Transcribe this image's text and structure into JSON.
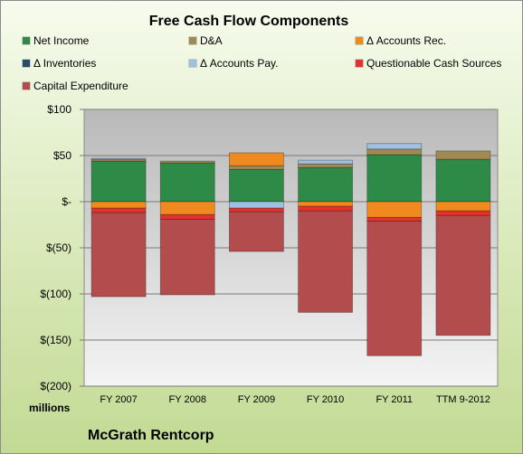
{
  "chart_data": {
    "type": "bar",
    "stacked": true,
    "title": "Free Cash Flow Components",
    "subtitle": "McGrath Rentcorp",
    "units_label": "millions",
    "categories": [
      "FY 2007",
      "FY 2008",
      "FY 2009",
      "FY 2010",
      "FY 2011",
      "TTM 9-2012"
    ],
    "y_ticks": [
      "$100",
      "$50",
      "$-",
      "$(50)",
      "$(100)",
      "$(150)",
      "$(200)"
    ],
    "ylim": [
      -200,
      100
    ],
    "grid": true,
    "legend_position": "top",
    "series": [
      {
        "name": "Net Income",
        "color": "#2e8b47",
        "values": [
          44,
          42,
          35,
          37,
          51,
          46
        ]
      },
      {
        "name": "D&A",
        "color": "#a08a54",
        "values": [
          2,
          2,
          4,
          4,
          6,
          9
        ]
      },
      {
        "name": "Δ Accounts Rec.",
        "color": "#f08a1e",
        "values": [
          -7,
          -14,
          14,
          -5,
          -17,
          -10
        ]
      },
      {
        "name": "Δ Inventories",
        "color": "#264d6b",
        "values": [
          0,
          0,
          0,
          0,
          0,
          0
        ]
      },
      {
        "name": "Δ Accounts Pay.",
        "color": "#9fc0e2",
        "values": [
          1,
          0,
          -7,
          4,
          6,
          0
        ]
      },
      {
        "name": "Questionable Cash Sources",
        "color": "#e4322b",
        "values": [
          -5,
          -5,
          -4,
          -5,
          -4,
          -5
        ]
      },
      {
        "name": "Capital Expenditure",
        "color": "#b34c4c",
        "values": [
          -91,
          -82,
          -43,
          -110,
          -146,
          -130
        ]
      }
    ]
  }
}
